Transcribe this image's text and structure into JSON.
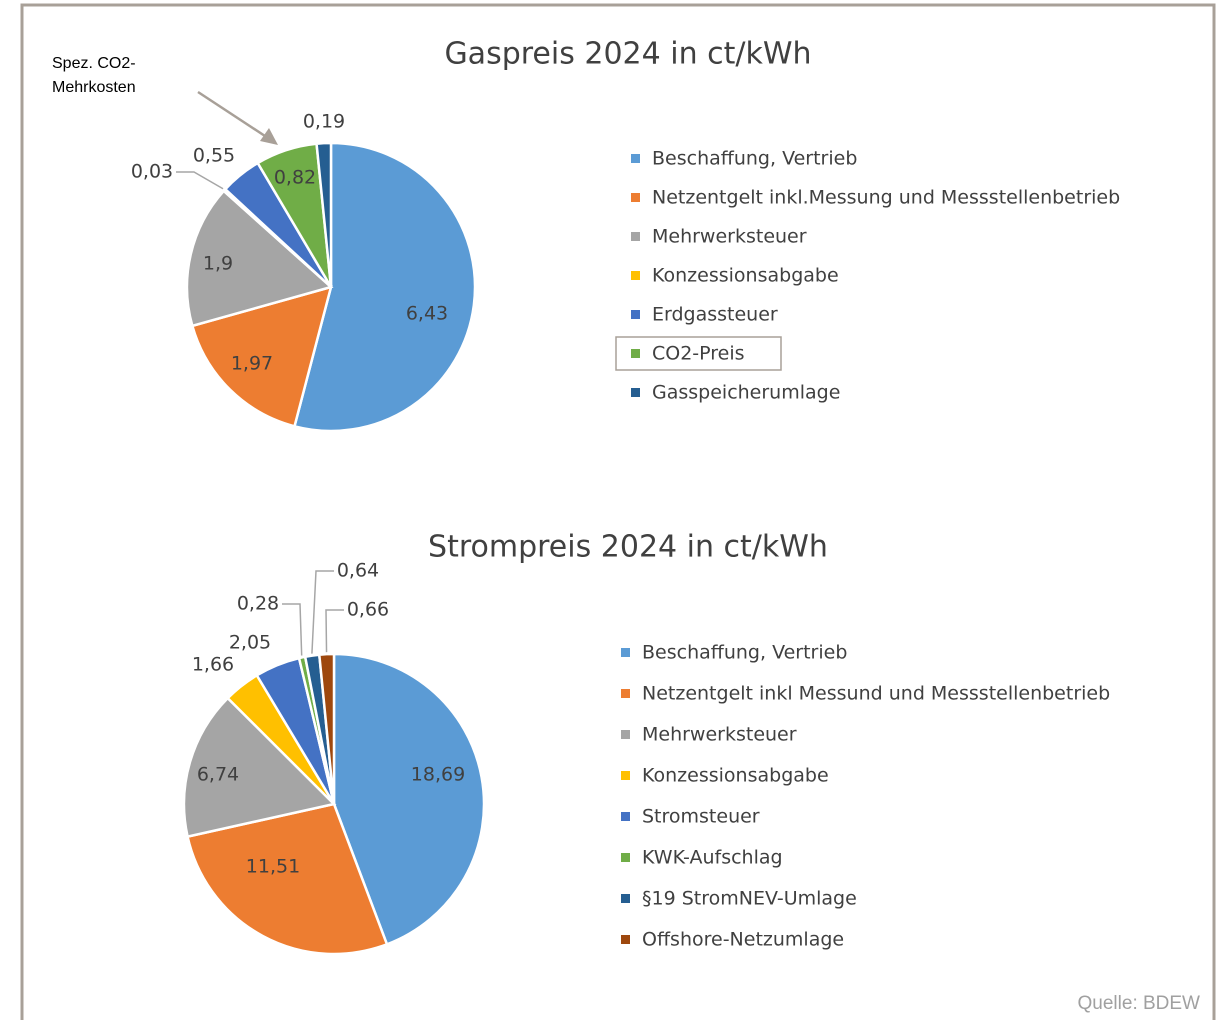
{
  "chart_data": [
    {
      "type": "pie",
      "title": "Gaspreis 2024 in ct/kWh",
      "categories": [
        "Beschaffung, Vertrieb",
        "Netzentgelt inkl.Messung und Messstellenbetrieb",
        "Mehrwerksteuer",
        "Konzessionsabgabe",
        "Erdgassteuer",
        "CO2-Preis",
        "Gasspeicherumlage"
      ],
      "values": [
        6.43,
        1.97,
        1.9,
        0.03,
        0.55,
        0.82,
        0.19
      ],
      "value_labels": [
        "6,43",
        "1,97",
        "1,9",
        "0,03",
        "0,55",
        "0,82",
        "0,19"
      ],
      "colors": [
        "#5b9bd5",
        "#ed7d31",
        "#a5a5a5",
        "#ffc000",
        "#4472c4",
        "#70ad47",
        "#255e91"
      ],
      "legend": "right",
      "legend_highlight": 5,
      "annotation": [
        "Spez. CO2-",
        "Mehrkosten"
      ]
    },
    {
      "type": "pie",
      "title": "Strompreis 2024 in ct/kWh",
      "categories": [
        "Beschaffung, Vertrieb",
        "Netzentgelt inkl Messund und Messstellenbetrieb",
        "Mehrwerksteuer",
        "Konzessionsabgabe",
        "Stromsteuer",
        "KWK-Aufschlag",
        "§19 StromNEV-Umlage",
        "Offshore-Netzumlage"
      ],
      "values": [
        18.69,
        11.51,
        6.74,
        1.66,
        2.05,
        0.28,
        0.64,
        0.66
      ],
      "value_labels": [
        "18,69",
        "11,51",
        "6,74",
        "1,66",
        "2,05",
        "0,28",
        "0,64",
        "0,66"
      ],
      "colors": [
        "#5b9bd5",
        "#ed7d31",
        "#a5a5a5",
        "#ffc000",
        "#4472c4",
        "#70ad47",
        "#255e91",
        "#9e480e"
      ],
      "legend": "right"
    }
  ],
  "source": "Quelle: BDEW"
}
